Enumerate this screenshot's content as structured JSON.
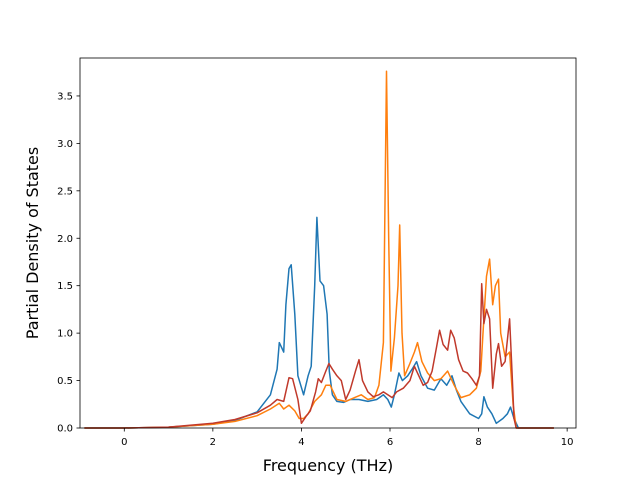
{
  "chart_data": {
    "type": "line",
    "title": "",
    "xlabel": "Frequency (THz)",
    "ylabel": "Partial Density of States",
    "xlim": [
      -1.0,
      10.2
    ],
    "ylim": [
      0,
      3.9
    ],
    "xticks": [
      0,
      2,
      4,
      6,
      8,
      10
    ],
    "yticks": [
      0.0,
      0.5,
      1.0,
      1.5,
      2.0,
      2.5,
      3.0,
      3.5
    ],
    "xtick_labels": [
      "0",
      "2",
      "4",
      "6",
      "8",
      "10"
    ],
    "ytick_labels": [
      "0.0",
      "0.5",
      "1.0",
      "1.5",
      "2.0",
      "2.5",
      "3.0",
      "3.5"
    ],
    "grid": false,
    "series": [
      {
        "color": "#1f77b4",
        "points": [
          [
            -0.9,
            0
          ],
          [
            0,
            0
          ],
          [
            1,
            0.01
          ],
          [
            2,
            0.04
          ],
          [
            2.5,
            0.08
          ],
          [
            3,
            0.17
          ],
          [
            3.3,
            0.35
          ],
          [
            3.45,
            0.62
          ],
          [
            3.5,
            0.9
          ],
          [
            3.6,
            0.8
          ],
          [
            3.65,
            1.3
          ],
          [
            3.72,
            1.68
          ],
          [
            3.77,
            1.72
          ],
          [
            3.85,
            1.2
          ],
          [
            3.92,
            0.55
          ],
          [
            4.05,
            0.35
          ],
          [
            4.15,
            0.55
          ],
          [
            4.22,
            0.65
          ],
          [
            4.3,
            1.5
          ],
          [
            4.35,
            2.22
          ],
          [
            4.42,
            1.55
          ],
          [
            4.5,
            1.5
          ],
          [
            4.58,
            1.2
          ],
          [
            4.63,
            0.6
          ],
          [
            4.7,
            0.35
          ],
          [
            4.8,
            0.28
          ],
          [
            4.95,
            0.27
          ],
          [
            5.1,
            0.3
          ],
          [
            5.3,
            0.3
          ],
          [
            5.5,
            0.28
          ],
          [
            5.7,
            0.3
          ],
          [
            5.85,
            0.35
          ],
          [
            5.95,
            0.3
          ],
          [
            6.03,
            0.22
          ],
          [
            6.1,
            0.35
          ],
          [
            6.2,
            0.58
          ],
          [
            6.28,
            0.5
          ],
          [
            6.4,
            0.55
          ],
          [
            6.5,
            0.62
          ],
          [
            6.6,
            0.7
          ],
          [
            6.7,
            0.55
          ],
          [
            6.85,
            0.42
          ],
          [
            7.0,
            0.4
          ],
          [
            7.15,
            0.52
          ],
          [
            7.28,
            0.45
          ],
          [
            7.4,
            0.55
          ],
          [
            7.5,
            0.4
          ],
          [
            7.6,
            0.28
          ],
          [
            7.8,
            0.15
          ],
          [
            8.0,
            0.1
          ],
          [
            8.07,
            0.15
          ],
          [
            8.12,
            0.33
          ],
          [
            8.2,
            0.22
          ],
          [
            8.3,
            0.15
          ],
          [
            8.4,
            0.05
          ],
          [
            8.55,
            0.1
          ],
          [
            8.65,
            0.15
          ],
          [
            8.72,
            0.22
          ],
          [
            8.8,
            0.1
          ],
          [
            8.9,
            0
          ],
          [
            9.7,
            0
          ]
        ]
      },
      {
        "color": "#ff7f0e",
        "points": [
          [
            -0.9,
            0
          ],
          [
            0,
            0
          ],
          [
            1,
            0.01
          ],
          [
            2,
            0.04
          ],
          [
            2.5,
            0.07
          ],
          [
            3,
            0.13
          ],
          [
            3.3,
            0.2
          ],
          [
            3.5,
            0.26
          ],
          [
            3.6,
            0.2
          ],
          [
            3.72,
            0.24
          ],
          [
            3.85,
            0.18
          ],
          [
            3.95,
            0.1
          ],
          [
            4.05,
            0.1
          ],
          [
            4.15,
            0.15
          ],
          [
            4.3,
            0.28
          ],
          [
            4.45,
            0.35
          ],
          [
            4.55,
            0.45
          ],
          [
            4.65,
            0.45
          ],
          [
            4.8,
            0.3
          ],
          [
            5.0,
            0.28
          ],
          [
            5.2,
            0.32
          ],
          [
            5.35,
            0.35
          ],
          [
            5.5,
            0.3
          ],
          [
            5.65,
            0.32
          ],
          [
            5.75,
            0.45
          ],
          [
            5.85,
            0.9
          ],
          [
            5.92,
            3.76
          ],
          [
            5.97,
            2.0
          ],
          [
            6.02,
            0.6
          ],
          [
            6.1,
            0.95
          ],
          [
            6.18,
            1.5
          ],
          [
            6.22,
            2.14
          ],
          [
            6.27,
            1.0
          ],
          [
            6.33,
            0.55
          ],
          [
            6.45,
            0.68
          ],
          [
            6.55,
            0.8
          ],
          [
            6.62,
            0.9
          ],
          [
            6.72,
            0.7
          ],
          [
            6.85,
            0.58
          ],
          [
            7.0,
            0.5
          ],
          [
            7.15,
            0.52
          ],
          [
            7.3,
            0.6
          ],
          [
            7.45,
            0.45
          ],
          [
            7.6,
            0.32
          ],
          [
            7.8,
            0.35
          ],
          [
            7.95,
            0.42
          ],
          [
            8.05,
            0.6
          ],
          [
            8.1,
            1.0
          ],
          [
            8.18,
            1.6
          ],
          [
            8.25,
            1.78
          ],
          [
            8.32,
            1.3
          ],
          [
            8.38,
            1.5
          ],
          [
            8.45,
            1.57
          ],
          [
            8.5,
            1.0
          ],
          [
            8.6,
            0.75
          ],
          [
            8.7,
            0.8
          ],
          [
            8.78,
            0.25
          ],
          [
            8.85,
            0
          ],
          [
            9.7,
            0
          ]
        ]
      },
      {
        "color": "#c0392b",
        "points": [
          [
            -0.9,
            0
          ],
          [
            0,
            0
          ],
          [
            1,
            0.01
          ],
          [
            2,
            0.05
          ],
          [
            2.5,
            0.09
          ],
          [
            3,
            0.16
          ],
          [
            3.3,
            0.24
          ],
          [
            3.45,
            0.3
          ],
          [
            3.6,
            0.28
          ],
          [
            3.72,
            0.53
          ],
          [
            3.8,
            0.52
          ],
          [
            3.92,
            0.3
          ],
          [
            4.0,
            0.05
          ],
          [
            4.1,
            0.12
          ],
          [
            4.2,
            0.18
          ],
          [
            4.32,
            0.38
          ],
          [
            4.38,
            0.52
          ],
          [
            4.45,
            0.48
          ],
          [
            4.55,
            0.6
          ],
          [
            4.62,
            0.68
          ],
          [
            4.7,
            0.62
          ],
          [
            4.8,
            0.55
          ],
          [
            4.9,
            0.5
          ],
          [
            5.0,
            0.3
          ],
          [
            5.1,
            0.4
          ],
          [
            5.22,
            0.6
          ],
          [
            5.3,
            0.72
          ],
          [
            5.38,
            0.5
          ],
          [
            5.5,
            0.38
          ],
          [
            5.62,
            0.33
          ],
          [
            5.75,
            0.35
          ],
          [
            5.85,
            0.38
          ],
          [
            5.95,
            0.35
          ],
          [
            6.05,
            0.32
          ],
          [
            6.15,
            0.38
          ],
          [
            6.3,
            0.42
          ],
          [
            6.45,
            0.5
          ],
          [
            6.55,
            0.65
          ],
          [
            6.65,
            0.55
          ],
          [
            6.75,
            0.45
          ],
          [
            6.85,
            0.48
          ],
          [
            6.95,
            0.6
          ],
          [
            7.05,
            0.85
          ],
          [
            7.12,
            1.03
          ],
          [
            7.2,
            0.88
          ],
          [
            7.3,
            0.82
          ],
          [
            7.37,
            1.03
          ],
          [
            7.45,
            0.95
          ],
          [
            7.55,
            0.72
          ],
          [
            7.65,
            0.6
          ],
          [
            7.75,
            0.58
          ],
          [
            7.85,
            0.52
          ],
          [
            7.95,
            0.45
          ],
          [
            8.02,
            0.55
          ],
          [
            8.07,
            1.52
          ],
          [
            8.12,
            1.1
          ],
          [
            8.18,
            1.25
          ],
          [
            8.25,
            1.15
          ],
          [
            8.32,
            0.42
          ],
          [
            8.4,
            0.78
          ],
          [
            8.45,
            0.89
          ],
          [
            8.52,
            0.65
          ],
          [
            8.6,
            0.7
          ],
          [
            8.7,
            1.15
          ],
          [
            8.76,
            0.55
          ],
          [
            8.8,
            0.1
          ],
          [
            8.85,
            0
          ],
          [
            9.7,
            0
          ]
        ]
      }
    ]
  }
}
